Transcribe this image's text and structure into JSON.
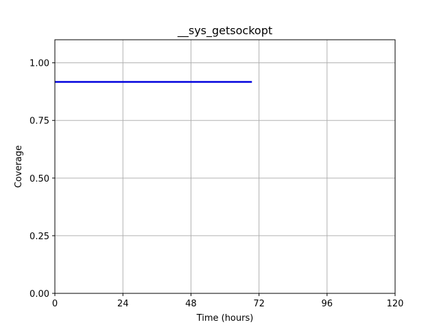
{
  "chart_data": {
    "type": "line",
    "title": "__sys_getsockopt",
    "xlabel": "Time (hours)",
    "ylabel": "Coverage",
    "xlim": [
      0,
      120
    ],
    "ylim": [
      0,
      1.1
    ],
    "xticks": [
      0,
      24,
      48,
      72,
      96,
      120
    ],
    "xtick_labels": [
      "0",
      "24",
      "48",
      "72",
      "96",
      "120"
    ],
    "yticks": [
      0,
      0.25,
      0.5,
      0.75,
      1.0
    ],
    "ytick_labels": [
      "0.00",
      "0.25",
      "0.50",
      "0.75",
      "1.00"
    ],
    "grid": true,
    "series": [
      {
        "name": "coverage",
        "color": "#0000dd",
        "x": [
          0,
          69.5
        ],
        "y": [
          0.917,
          0.917
        ]
      }
    ]
  }
}
